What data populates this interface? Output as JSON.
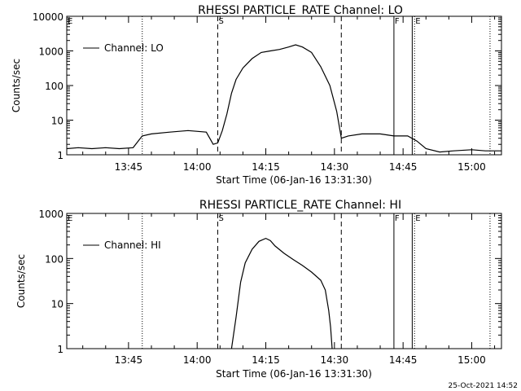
{
  "footer": {
    "timestamp": "25-Oct-2021 14:52"
  },
  "chart_data": [
    {
      "type": "line",
      "title": "RHESSI PARTICLE_RATE Channel: LO",
      "xlabel": "Start Time (06-Jan-16 13:31:30)",
      "ylabel": "Counts/sec",
      "y_scale": "log",
      "ylim": [
        1,
        10000
      ],
      "xlim": [
        "13:31:30",
        "15:06:30"
      ],
      "x_ticks": [
        "13:45",
        "14:00",
        "14:15",
        "14:30",
        "14:45",
        "15:00"
      ],
      "y_ticks": [
        "1",
        "10",
        "100",
        "1000",
        "10000"
      ],
      "legend": {
        "position": "top-left",
        "entries": [
          "Channel: LO"
        ]
      },
      "markers": [
        {
          "label": "E",
          "time": "13:31:30",
          "style": "dotted"
        },
        {
          "label": "",
          "time": "13:48:00",
          "style": "dotted"
        },
        {
          "label": "S",
          "time": "14:04:30",
          "style": "dashed"
        },
        {
          "label": "",
          "time": "14:31:30",
          "style": "dashed"
        },
        {
          "label": "F",
          "time": "14:43:00",
          "style": "solid"
        },
        {
          "label": "",
          "time": "14:47:00",
          "style": "solid"
        },
        {
          "label": "E",
          "time": "14:47:30",
          "style": "dotted"
        },
        {
          "label": "",
          "time": "15:04:00",
          "style": "dotted"
        }
      ],
      "series": [
        {
          "name": "Channel: LO",
          "x": [
            "13:31:30",
            "13:34:00",
            "13:37:00",
            "13:40:00",
            "13:43:00",
            "13:46:00",
            "13:48:00",
            "13:50:00",
            "13:54:00",
            "13:58:00",
            "14:02:00",
            "14:03:30",
            "14:04:30",
            "14:05:30",
            "14:06:30",
            "14:07:30",
            "14:08:30",
            "14:10:00",
            "14:12:00",
            "14:14:00",
            "14:16:00",
            "14:18:00",
            "14:20:00",
            "14:21:30",
            "14:23:00",
            "14:25:00",
            "14:27:00",
            "14:29:00",
            "14:30:30",
            "14:31:30",
            "14:33:00",
            "14:36:00",
            "14:40:00",
            "14:43:00",
            "14:46:00",
            "14:48:00",
            "14:50:00",
            "14:53:00",
            "14:56:00",
            "15:00:00",
            "15:03:00",
            "15:06:30"
          ],
          "y": [
            1.5,
            1.6,
            1.5,
            1.6,
            1.5,
            1.6,
            3.5,
            4,
            4.5,
            5,
            4.5,
            2,
            2.2,
            5,
            15,
            60,
            150,
            320,
            600,
            900,
            1000,
            1100,
            1300,
            1500,
            1300,
            900,
            350,
            100,
            18,
            3,
            3.5,
            4,
            4,
            3.5,
            3.5,
            2.5,
            1.5,
            1.2,
            1.3,
            1.4,
            1.3,
            1.3
          ]
        }
      ]
    },
    {
      "type": "line",
      "title": "RHESSI PARTICLE_RATE Channel: HI",
      "xlabel": "Start Time (06-Jan-16 13:31:30)",
      "ylabel": "Counts/sec",
      "y_scale": "log",
      "ylim": [
        1,
        1000
      ],
      "xlim": [
        "13:31:30",
        "15:06:30"
      ],
      "x_ticks": [
        "13:45",
        "14:00",
        "14:15",
        "14:30",
        "14:45",
        "15:00"
      ],
      "y_ticks": [
        "1",
        "10",
        "100",
        "1000"
      ],
      "legend": {
        "position": "top-left",
        "entries": [
          "Channel: HI"
        ]
      },
      "markers": [
        {
          "label": "E",
          "time": "13:31:30",
          "style": "dotted"
        },
        {
          "label": "",
          "time": "13:48:00",
          "style": "dotted"
        },
        {
          "label": "S",
          "time": "14:04:30",
          "style": "dashed"
        },
        {
          "label": "",
          "time": "14:31:30",
          "style": "dashed"
        },
        {
          "label": "F",
          "time": "14:43:00",
          "style": "solid"
        },
        {
          "label": "",
          "time": "14:47:00",
          "style": "solid"
        },
        {
          "label": "E",
          "time": "14:47:30",
          "style": "dotted"
        },
        {
          "label": "",
          "time": "15:04:00",
          "style": "dotted"
        }
      ],
      "series": [
        {
          "name": "Channel: HI",
          "x": [
            "14:07:30",
            "14:08:30",
            "14:09:30",
            "14:10:30",
            "14:12:00",
            "14:13:30",
            "14:15:00",
            "14:16:00",
            "14:17:00",
            "14:19:00",
            "14:21:00",
            "14:23:00",
            "14:25:00",
            "14:27:00",
            "14:28:00",
            "14:28:45",
            "14:29:10",
            "14:29:30"
          ],
          "y": [
            1,
            5,
            30,
            80,
            160,
            240,
            280,
            250,
            190,
            130,
            95,
            70,
            50,
            33,
            20,
            7,
            3,
            1
          ]
        }
      ]
    }
  ]
}
